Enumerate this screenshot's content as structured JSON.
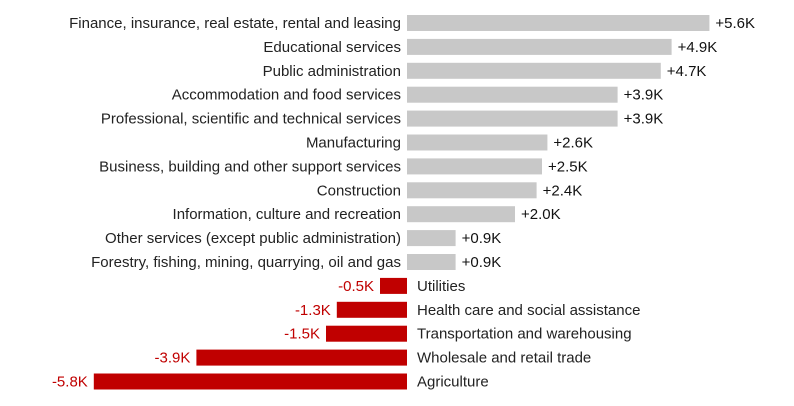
{
  "chart_data": {
    "type": "bar",
    "orientation": "horizontal",
    "unit_suffix": "K",
    "colors": {
      "positive": "#c8c8c8",
      "negative": "#c00000",
      "positive_label": "#111111",
      "negative_label": "#c00000"
    },
    "rows": [
      {
        "category": "Finance, insurance, real estate, rental and leasing",
        "value": 5.6,
        "label": "+5.6K"
      },
      {
        "category": "Educational services",
        "value": 4.9,
        "label": "+4.9K"
      },
      {
        "category": "Public administration",
        "value": 4.7,
        "label": "+4.7K"
      },
      {
        "category": "Accommodation and food services",
        "value": 3.9,
        "label": "+3.9K"
      },
      {
        "category": "Professional, scientific and technical services",
        "value": 3.9,
        "label": "+3.9K"
      },
      {
        "category": "Manufacturing",
        "value": 2.6,
        "label": "+2.6K"
      },
      {
        "category": "Business, building and other support services",
        "value": 2.5,
        "label": "+2.5K"
      },
      {
        "category": "Construction",
        "value": 2.4,
        "label": "+2.4K"
      },
      {
        "category": "Information, culture and recreation",
        "value": 2.0,
        "label": "+2.0K"
      },
      {
        "category": "Other services (except public administration)",
        "value": 0.9,
        "label": "+0.9K"
      },
      {
        "category": "Forestry, fishing, mining, quarrying, oil and gas",
        "value": 0.9,
        "label": "+0.9K"
      },
      {
        "category": "Utilities",
        "value": -0.5,
        "label": "-0.5K"
      },
      {
        "category": "Health care and social assistance",
        "value": -1.3,
        "label": "-1.3K"
      },
      {
        "category": "Transportation and warehousing",
        "value": -1.5,
        "label": "-1.5K"
      },
      {
        "category": "Wholesale and retail trade",
        "value": -3.9,
        "label": "-3.9K"
      },
      {
        "category": "Agriculture",
        "value": -5.8,
        "label": "-5.8K"
      }
    ]
  }
}
